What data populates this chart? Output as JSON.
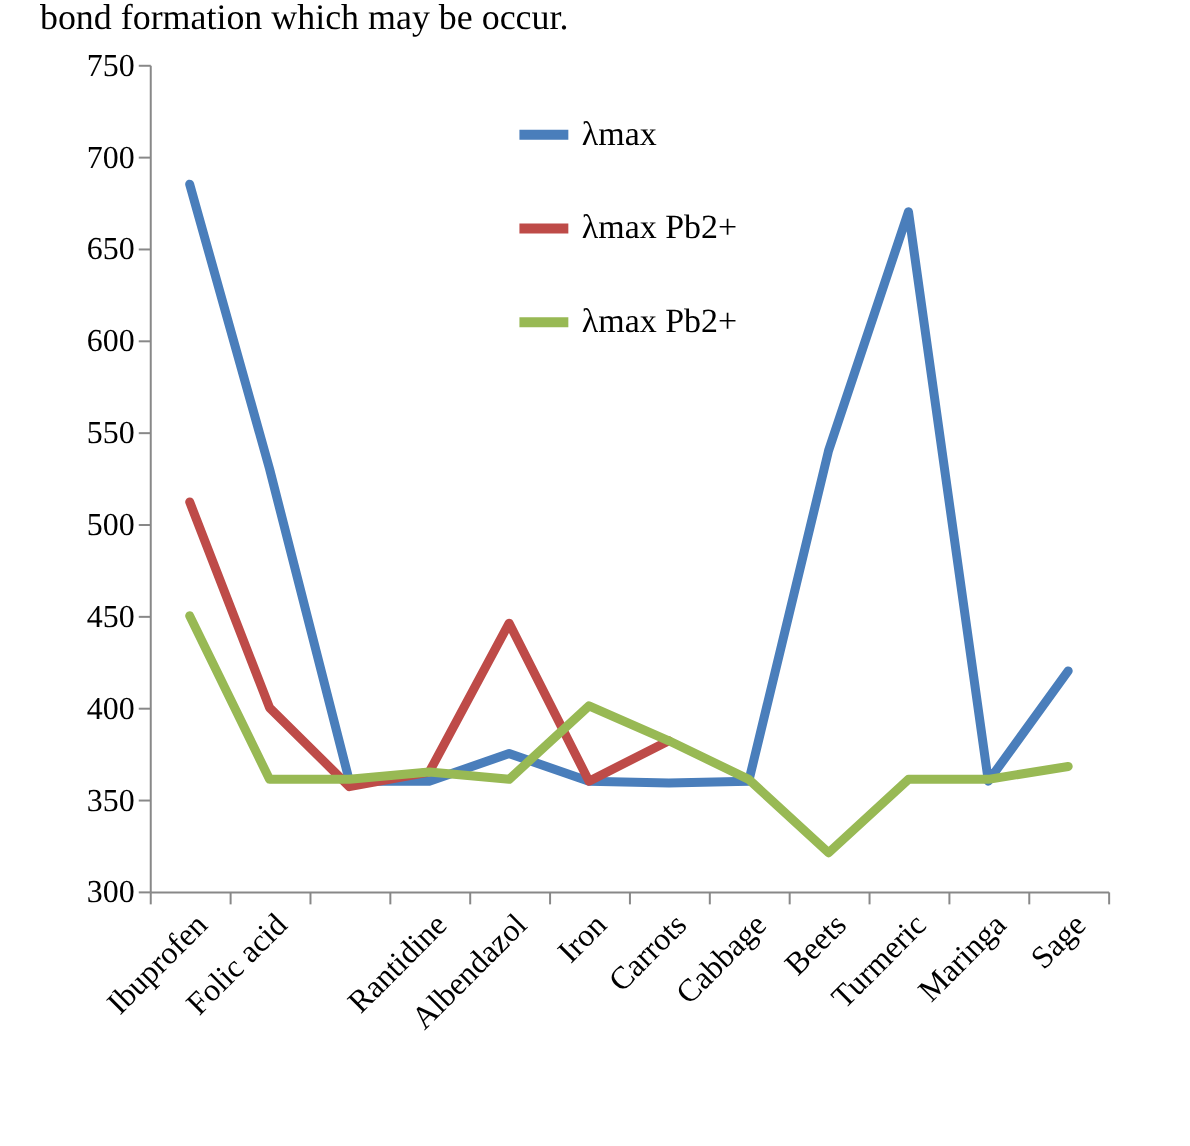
{
  "chart_data": {
    "type": "line",
    "annotations": [
      "bond formation which may be occur."
    ],
    "categories": [
      "Ibuprofen",
      "Folic acid",
      null,
      "Rantidine",
      "Albendazol",
      "Iron",
      "Carrots",
      "Cabbage",
      "Beets",
      "Turmeric",
      "Maringa",
      "Sage"
    ],
    "series": [
      {
        "name": "λmax",
        "color": "#4a7ebb",
        "values": [
          685,
          530,
          360,
          360,
          375,
          360,
          359,
          360,
          540,
          670,
          360,
          420
        ]
      },
      {
        "name": "λmax Pb2+",
        "color": "#be4b48",
        "values": [
          512,
          400,
          357,
          365,
          446,
          360,
          382,
          null,
          null,
          null,
          null,
          null
        ]
      },
      {
        "name": "λmax Pb2+",
        "color": "#98b954",
        "values": [
          450,
          361,
          361,
          365,
          361,
          401,
          382,
          361,
          321,
          361,
          361,
          368
        ]
      }
    ],
    "ylim": [
      300,
      750
    ],
    "yticks": [
      300,
      350,
      400,
      450,
      500,
      550,
      600,
      650,
      700,
      750
    ],
    "grid": false,
    "legend": "top",
    "marker": "none",
    "line_style": "solid"
  }
}
